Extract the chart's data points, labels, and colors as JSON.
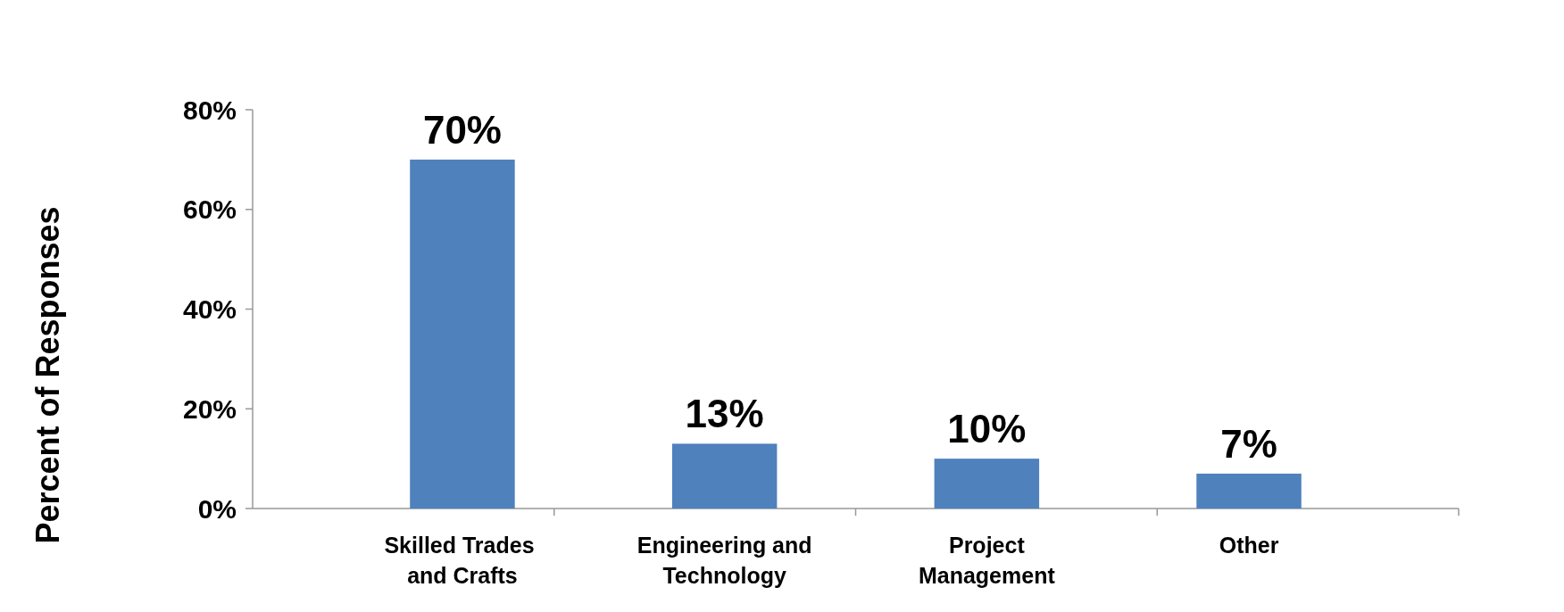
{
  "chart_data": {
    "type": "bar",
    "ylabel": "Percent of Responses",
    "categories": [
      "Skilled Trades  and Crafts",
      "Engineering and Technology",
      "Project Management",
      "Other"
    ],
    "values": [
      70,
      13,
      10,
      7
    ],
    "value_labels": [
      "70%",
      "13%",
      "10%",
      "7%"
    ],
    "color": "#4f81bd",
    "ylim": [
      0,
      80
    ],
    "yticks": [
      {
        "value": 0,
        "label": "0%"
      },
      {
        "value": 20,
        "label": "20%"
      },
      {
        "value": 40,
        "label": "40%"
      },
      {
        "value": 60,
        "label": "60%"
      },
      {
        "value": 80,
        "label": "80%"
      }
    ],
    "grid": false
  }
}
